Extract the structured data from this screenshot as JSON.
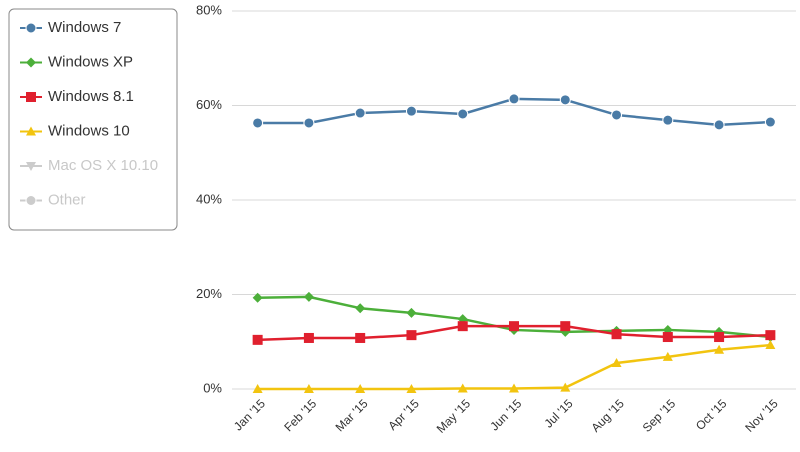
{
  "chart_data": {
    "type": "line",
    "categories": [
      "Jan '15",
      "Feb '15",
      "Mar '15",
      "Apr '15",
      "May '15",
      "Jun '15",
      "Jul '15",
      "Aug '15",
      "Sep '15",
      "Oct '15",
      "Nov '15"
    ],
    "series": [
      {
        "name": "Windows 7",
        "color": "#4a7ba6",
        "marker": "circle",
        "values": [
          56.3,
          56.3,
          58.4,
          58.8,
          58.2,
          61.4,
          61.2,
          58.0,
          56.9,
          55.9,
          56.5
        ]
      },
      {
        "name": "Windows XP",
        "color": "#4caf3a",
        "marker": "diamond",
        "values": [
          19.3,
          19.5,
          17.1,
          16.1,
          14.8,
          12.5,
          12.1,
          12.3,
          12.5,
          12.1,
          11.0
        ]
      },
      {
        "name": "Windows 8.1",
        "color": "#e0202e",
        "marker": "square",
        "values": [
          10.4,
          10.8,
          10.8,
          11.4,
          13.3,
          13.3,
          13.3,
          11.6,
          11.0,
          11.0,
          11.4
        ]
      },
      {
        "name": "Windows 10",
        "color": "#f2c40f",
        "marker": "triangle",
        "values": [
          0,
          0,
          0,
          0,
          0.1,
          0.1,
          0.3,
          5.5,
          6.8,
          8.3,
          9.3
        ]
      },
      {
        "name": "Mac OS X 10.10",
        "color": "#cccccc",
        "marker": "triangle-down",
        "hidden": true,
        "values": [
          null,
          null,
          null,
          null,
          null,
          null,
          null,
          null,
          null,
          null,
          null
        ]
      },
      {
        "name": "Other",
        "color": "#cccccc",
        "marker": "circle",
        "hidden": true,
        "values": [
          null,
          null,
          null,
          null,
          null,
          null,
          null,
          null,
          null,
          null,
          null
        ]
      }
    ],
    "ylim": [
      0,
      80
    ],
    "yticks": [
      {
        "value": 0,
        "label": "0%"
      },
      {
        "value": 20,
        "label": "20%"
      },
      {
        "value": 40,
        "label": "40%"
      },
      {
        "value": 60,
        "label": "60%"
      },
      {
        "value": 80,
        "label": "80%"
      }
    ],
    "grid": true,
    "legend": "top-left"
  }
}
